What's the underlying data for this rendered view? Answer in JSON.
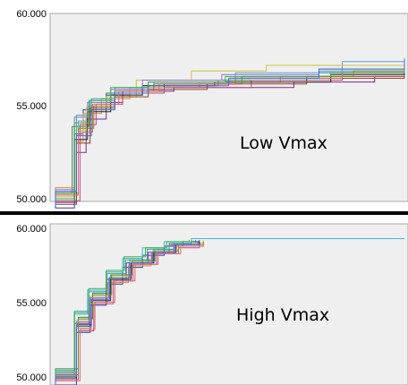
{
  "chart_data": [
    {
      "type": "line",
      "label": "Low Vmax",
      "ylim": [
        50,
        60
      ],
      "yticks": [
        "50.000",
        "55.000",
        "60.000"
      ],
      "xlim": [
        0,
        100
      ],
      "series": [
        {
          "color": "#1f3f9f",
          "points": [
            [
              0,
              49.5
            ],
            [
              0.5,
              53.5
            ],
            [
              1,
              54.8
            ],
            [
              3,
              55.6
            ],
            [
              6,
              55.9
            ],
            [
              12,
              56.2
            ],
            [
              30,
              56.5
            ],
            [
              60,
              56.8
            ],
            [
              100,
              57.1
            ]
          ]
        },
        {
          "color": "#7a2a8c",
          "points": [
            [
              0,
              49.8
            ],
            [
              0.6,
              52.5
            ],
            [
              1.2,
              54.3
            ],
            [
              3,
              55.2
            ],
            [
              5,
              55.8
            ],
            [
              14,
              56.0
            ],
            [
              50,
              56.3
            ],
            [
              85,
              56.6
            ],
            [
              100,
              56.6
            ]
          ]
        },
        {
          "color": "#2e8b57",
          "points": [
            [
              0,
              50.3
            ],
            [
              0.4,
              53.9
            ],
            [
              1.4,
              55.0
            ],
            [
              3,
              55.7
            ],
            [
              8,
              56.1
            ],
            [
              25,
              56.4
            ],
            [
              55,
              56.6
            ],
            [
              100,
              56.8
            ]
          ]
        },
        {
          "color": "#d98c3a",
          "points": [
            [
              0,
              50.6
            ],
            [
              0.5,
              53.1
            ],
            [
              1,
              54.6
            ],
            [
              2.5,
              55.4
            ],
            [
              6,
              56.0
            ],
            [
              20,
              56.3
            ],
            [
              45,
              56.6
            ],
            [
              100,
              56.9
            ]
          ]
        },
        {
          "color": "#5aa0d8",
          "points": [
            [
              0,
              50.2
            ],
            [
              0.7,
              54.2
            ],
            [
              1.5,
              55.3
            ],
            [
              4,
              55.9
            ],
            [
              10,
              56.3
            ],
            [
              30,
              56.8
            ],
            [
              70,
              57.4
            ],
            [
              100,
              57.6
            ]
          ]
        },
        {
          "color": "#c7c73a",
          "points": [
            [
              0,
              50.1
            ],
            [
              0.5,
              53.7
            ],
            [
              1.2,
              54.9
            ],
            [
              3,
              55.5
            ],
            [
              7,
              56.4
            ],
            [
              18,
              56.9
            ],
            [
              40,
              57.2
            ],
            [
              100,
              57.3
            ]
          ]
        },
        {
          "color": "#c24a8a",
          "points": [
            [
              0,
              49.9
            ],
            [
              0.8,
              54.0
            ],
            [
              2,
              55.1
            ],
            [
              5,
              55.7
            ],
            [
              12,
              56.0
            ],
            [
              35,
              56.4
            ],
            [
              70,
              56.6
            ],
            [
              100,
              56.7
            ]
          ]
        },
        {
          "color": "#3aa6a6",
          "points": [
            [
              0,
              50.4
            ],
            [
              0.6,
              54.5
            ],
            [
              1.6,
              55.4
            ],
            [
              4,
              56.0
            ],
            [
              9,
              56.3
            ],
            [
              28,
              56.5
            ],
            [
              60,
              56.9
            ],
            [
              100,
              57.0
            ]
          ]
        },
        {
          "color": "#222222",
          "points": [
            [
              0,
              50.0
            ],
            [
              0.5,
              53.2
            ],
            [
              1.3,
              54.7
            ],
            [
              3.5,
              55.6
            ],
            [
              8,
              56.1
            ],
            [
              24,
              56.3
            ],
            [
              65,
              56.7
            ],
            [
              100,
              56.8
            ]
          ]
        },
        {
          "color": "#6b8e23",
          "points": [
            [
              0,
              50.3
            ],
            [
              0.7,
              53.8
            ],
            [
              1.8,
              55.0
            ],
            [
              4,
              55.8
            ],
            [
              10,
              56.2
            ],
            [
              32,
              56.6
            ],
            [
              75,
              56.9
            ],
            [
              100,
              57.2
            ]
          ]
        },
        {
          "color": "#8b4513",
          "points": [
            [
              0,
              49.7
            ],
            [
              0.6,
              53.0
            ],
            [
              1.5,
              54.9
            ],
            [
              4,
              55.5
            ],
            [
              9,
              55.9
            ],
            [
              22,
              56.2
            ],
            [
              55,
              56.5
            ],
            [
              100,
              56.6
            ]
          ]
        },
        {
          "color": "#9370db",
          "points": [
            [
              0,
              50.5
            ],
            [
              0.5,
              54.4
            ],
            [
              1.3,
              55.2
            ],
            [
              3.5,
              55.9
            ],
            [
              8,
              56.4
            ],
            [
              26,
              56.7
            ],
            [
              60,
              57.0
            ],
            [
              100,
              57.4
            ]
          ]
        },
        {
          "color": "#e06666",
          "points": [
            [
              0,
              50.2
            ],
            [
              0.7,
              53.6
            ],
            [
              1.7,
              55.1
            ],
            [
              4.5,
              55.8
            ],
            [
              11,
              56.2
            ],
            [
              30,
              56.5
            ],
            [
              70,
              56.8
            ],
            [
              100,
              56.9
            ]
          ]
        },
        {
          "color": "#3cb043",
          "points": [
            [
              0,
              50.0
            ],
            [
              0.5,
              54.1
            ],
            [
              1.4,
              55.3
            ],
            [
              3.5,
              56.0
            ],
            [
              9,
              56.3
            ],
            [
              27,
              56.6
            ],
            [
              65,
              56.8
            ],
            [
              100,
              56.9
            ]
          ]
        },
        {
          "color": "#4169e1",
          "points": [
            [
              0,
              50.4
            ],
            [
              0.6,
              53.4
            ],
            [
              1.6,
              54.8
            ],
            [
              4,
              55.7
            ],
            [
              9,
              56.1
            ],
            [
              28,
              56.5
            ],
            [
              60,
              57.0
            ],
            [
              100,
              57.5
            ]
          ]
        }
      ]
    },
    {
      "type": "line",
      "label": "High Vmax",
      "ylim": [
        50,
        60
      ],
      "yticks": [
        "50.000",
        "55.000",
        "60.000"
      ],
      "xlim": [
        0,
        100
      ],
      "series": [
        {
          "color": "#1f3f9f",
          "points": [
            [
              0,
              49.5
            ],
            [
              0.6,
              53.0
            ],
            [
              1.5,
              54.8
            ],
            [
              3,
              56.2
            ],
            [
              5,
              57.3
            ],
            [
              8,
              58.1
            ],
            [
              12,
              58.7
            ],
            [
              16,
              59.0
            ],
            [
              20,
              59.1
            ]
          ]
        },
        {
          "color": "#7a2a8c",
          "points": [
            [
              0,
              50.2
            ],
            [
              0.5,
              53.6
            ],
            [
              1.4,
              55.2
            ],
            [
              3,
              56.5
            ],
            [
              5.5,
              57.6
            ],
            [
              9,
              58.3
            ],
            [
              13,
              58.8
            ],
            [
              18,
              59.0
            ]
          ]
        },
        {
          "color": "#2e8b57",
          "points": [
            [
              0,
              50.6
            ],
            [
              0.7,
              54.0
            ],
            [
              1.7,
              55.6
            ],
            [
              3.5,
              56.8
            ],
            [
              6,
              57.8
            ],
            [
              10,
              58.5
            ],
            [
              14,
              58.9
            ],
            [
              19,
              59.1
            ]
          ]
        },
        {
          "color": "#d98c3a",
          "points": [
            [
              0,
              50.1
            ],
            [
              0.6,
              53.3
            ],
            [
              1.6,
              55.0
            ],
            [
              3.2,
              56.3
            ],
            [
              5.8,
              57.4
            ],
            [
              9.5,
              58.2
            ],
            [
              14,
              58.7
            ],
            [
              20,
              58.9
            ]
          ]
        },
        {
          "color": "#3fb6d6",
          "points": [
            [
              0,
              50.3
            ],
            [
              0.5,
              54.2
            ],
            [
              1.3,
              55.8
            ],
            [
              3,
              57.0
            ],
            [
              5,
              57.9
            ],
            [
              8,
              58.6
            ],
            [
              12,
              59.0
            ],
            [
              18,
              59.2
            ],
            [
              100,
              59.2
            ]
          ]
        },
        {
          "color": "#c7c73a",
          "points": [
            [
              0,
              50.4
            ],
            [
              0.6,
              53.8
            ],
            [
              1.5,
              55.4
            ],
            [
              3.4,
              56.7
            ],
            [
              6,
              57.7
            ],
            [
              9.8,
              58.4
            ],
            [
              14.5,
              58.9
            ],
            [
              21,
              59.1
            ]
          ]
        },
        {
          "color": "#c24a8a",
          "points": [
            [
              0,
              49.9
            ],
            [
              0.7,
              53.1
            ],
            [
              1.8,
              54.9
            ],
            [
              3.8,
              56.4
            ],
            [
              6.5,
              57.5
            ],
            [
              10.5,
              58.2
            ],
            [
              15,
              58.6
            ],
            [
              20,
              58.8
            ]
          ]
        },
        {
          "color": "#3aa6a6",
          "points": [
            [
              0,
              50.5
            ],
            [
              0.5,
              54.4
            ],
            [
              1.4,
              55.7
            ],
            [
              3.1,
              56.9
            ],
            [
              5.4,
              57.8
            ],
            [
              8.8,
              58.5
            ],
            [
              13,
              58.9
            ],
            [
              18,
              59.1
            ]
          ]
        },
        {
          "color": "#222222",
          "points": [
            [
              0,
              50.0
            ],
            [
              0.6,
              53.5
            ],
            [
              1.6,
              55.1
            ],
            [
              3.5,
              56.5
            ],
            [
              6.2,
              57.6
            ],
            [
              10,
              58.3
            ],
            [
              14.5,
              58.8
            ],
            [
              20,
              59.0
            ]
          ]
        },
        {
          "color": "#6b8e23",
          "points": [
            [
              0,
              50.2
            ],
            [
              0.7,
              53.9
            ],
            [
              1.7,
              55.5
            ],
            [
              3.6,
              56.8
            ],
            [
              6.3,
              57.7
            ],
            [
              10.2,
              58.4
            ],
            [
              15,
              58.8
            ],
            [
              21,
              59.0
            ]
          ]
        },
        {
          "color": "#9370db",
          "points": [
            [
              0,
              50.3
            ],
            [
              0.6,
              53.7
            ],
            [
              1.5,
              55.3
            ],
            [
              3.3,
              56.6
            ],
            [
              5.9,
              57.6
            ],
            [
              9.6,
              58.3
            ],
            [
              14,
              58.8
            ],
            [
              19.5,
              59.0
            ]
          ]
        },
        {
          "color": "#e06666",
          "points": [
            [
              0,
              49.8
            ],
            [
              0.8,
              53.2
            ],
            [
              1.9,
              55.0
            ],
            [
              4,
              56.4
            ],
            [
              6.8,
              57.5
            ],
            [
              10.8,
              58.2
            ],
            [
              15.5,
              58.7
            ],
            [
              21,
              58.9
            ]
          ]
        },
        {
          "color": "#3cb043",
          "points": [
            [
              0,
              50.4
            ],
            [
              0.5,
              54.3
            ],
            [
              1.4,
              55.9
            ],
            [
              3,
              57.1
            ],
            [
              5.2,
              58.0
            ],
            [
              8.5,
              58.6
            ],
            [
              12.5,
              59.0
            ],
            [
              17.5,
              59.1
            ]
          ]
        },
        {
          "color": "#4169e1",
          "points": [
            [
              0,
              50.1
            ],
            [
              0.6,
              53.4
            ],
            [
              1.6,
              55.2
            ],
            [
              3.4,
              56.6
            ],
            [
              6,
              57.6
            ],
            [
              9.8,
              58.3
            ],
            [
              14.2,
              58.8
            ],
            [
              19.8,
              59.0
            ]
          ]
        }
      ]
    }
  ]
}
